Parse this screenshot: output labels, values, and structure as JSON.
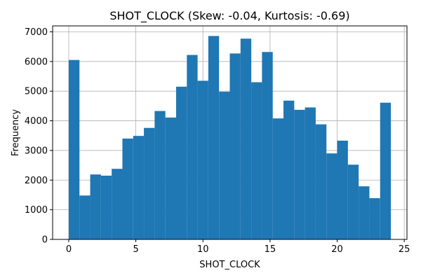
{
  "chart_data": {
    "type": "bar",
    "title": "SHOT_CLOCK (Skew: -0.04, Kurtosis: -0.69)",
    "xlabel": "SHOT_CLOCK",
    "ylabel": "Frequency",
    "xlim": [
      -1.2,
      25.2
    ],
    "ylim": [
      0,
      7200
    ],
    "xticks": [
      0,
      5,
      10,
      15,
      20,
      25
    ],
    "yticks": [
      0,
      1000,
      2000,
      3000,
      4000,
      5000,
      6000,
      7000
    ],
    "grid": true,
    "bar_color": "#1f77b4",
    "bin_start": 0,
    "bin_width": 0.8,
    "values": [
      6050,
      1480,
      2190,
      2150,
      2380,
      3400,
      3490,
      3760,
      4330,
      4110,
      5150,
      6220,
      5350,
      6860,
      4980,
      6270,
      6770,
      5300,
      6320,
      4080,
      4680,
      4370,
      4450,
      3880,
      2900,
      3330,
      2520,
      1790,
      1390,
      4610
    ]
  }
}
